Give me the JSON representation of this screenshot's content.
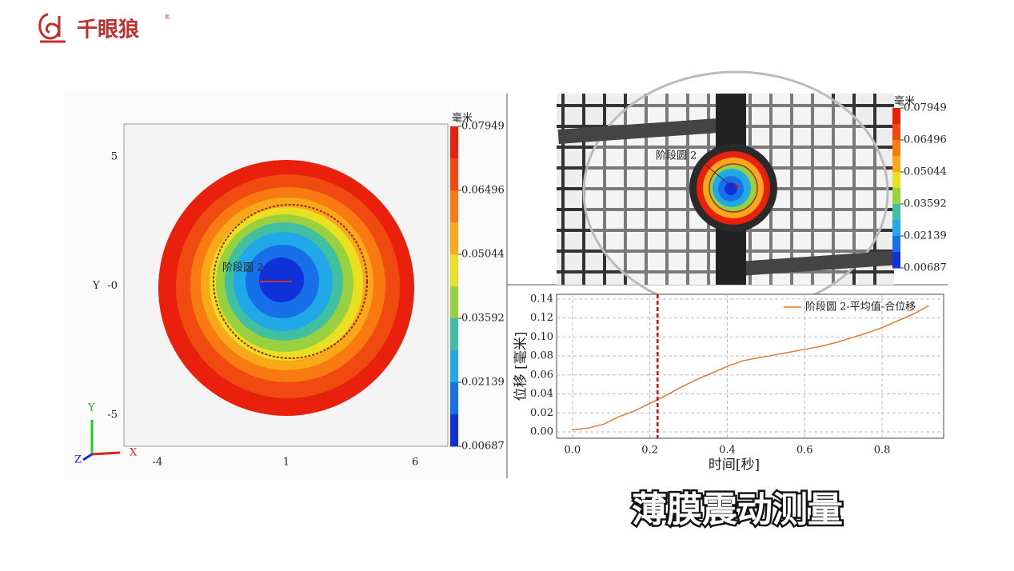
{
  "logo": {
    "text": "千眼狼",
    "mark": "®"
  },
  "caption": "薄膜震动测量",
  "photo": {
    "label": "阶段圆 2",
    "colorbar_title": "毫米",
    "colorbar_ticks": [
      0.07949,
      0.06496,
      0.05044,
      0.03592,
      0.02139,
      0.00687
    ]
  },
  "chart_data": [
    {
      "type": "contour",
      "y_label": "Y",
      "colorbar_title": "毫米",
      "label": "阶段圆 2",
      "triad": [
        "X",
        "Y",
        "Z"
      ],
      "xlim": [
        -5.3,
        7.27
      ],
      "ylim": [
        -6.2,
        6.27
      ],
      "xticks": [
        -4,
        1,
        6
      ],
      "yticks": [
        5,
        {
          "value": 0,
          "label": "-0"
        },
        -5
      ],
      "clim": [
        0.00687,
        0.07949
      ],
      "colorbar_ticks": [
        0.07949,
        0.06496,
        0.05044,
        0.03592,
        0.02139,
        0.00687
      ]
    },
    {
      "type": "line",
      "x_label": "时间[秒]",
      "y_label": "位移 [毫米]",
      "cursor_x": 0.22,
      "grid": true,
      "x": [
        0,
        0.04,
        0.08,
        0.12,
        0.16,
        0.2,
        0.24,
        0.28,
        0.32,
        0.36,
        0.4,
        0.44,
        0.48,
        0.52,
        0.56,
        0.6,
        0.64,
        0.68,
        0.72,
        0.76,
        0.8,
        0.84,
        0.88,
        0.92
      ],
      "series": [
        {
          "name": "阶段圆 2-平均值-合位移",
          "color": "#e07b30",
          "values": [
            0.002,
            0.004,
            0.008,
            0.016,
            0.022,
            0.03,
            0.038,
            0.047,
            0.055,
            0.062,
            0.069,
            0.075,
            0.078,
            0.081,
            0.084,
            0.087,
            0.09,
            0.094,
            0.099,
            0.104,
            0.11,
            0.117,
            0.124,
            0.133
          ]
        }
      ],
      "xlim": [
        -0.041,
        0.959
      ],
      "ylim": [
        -0.0067,
        0.145
      ],
      "xticks": [
        {
          "value": 0,
          "label": "0.0"
        },
        {
          "value": 0.2,
          "label": "0.2"
        },
        {
          "value": 0.4,
          "label": "0.4"
        },
        {
          "value": 0.6,
          "label": "0.6"
        },
        {
          "value": 0.8,
          "label": "0.8"
        }
      ],
      "yticks": [
        {
          "value": 0,
          "label": "0.00"
        },
        {
          "value": 0.02,
          "label": "0.02"
        },
        {
          "value": 0.04,
          "label": "0.04"
        },
        {
          "value": 0.06,
          "label": "0.06"
        },
        {
          "value": 0.08,
          "label": "0.08"
        },
        {
          "value": 0.1,
          "label": "0.10"
        },
        {
          "value": 0.12,
          "label": "0.12"
        },
        {
          "value": 0.14,
          "label": "0.14"
        }
      ]
    }
  ]
}
